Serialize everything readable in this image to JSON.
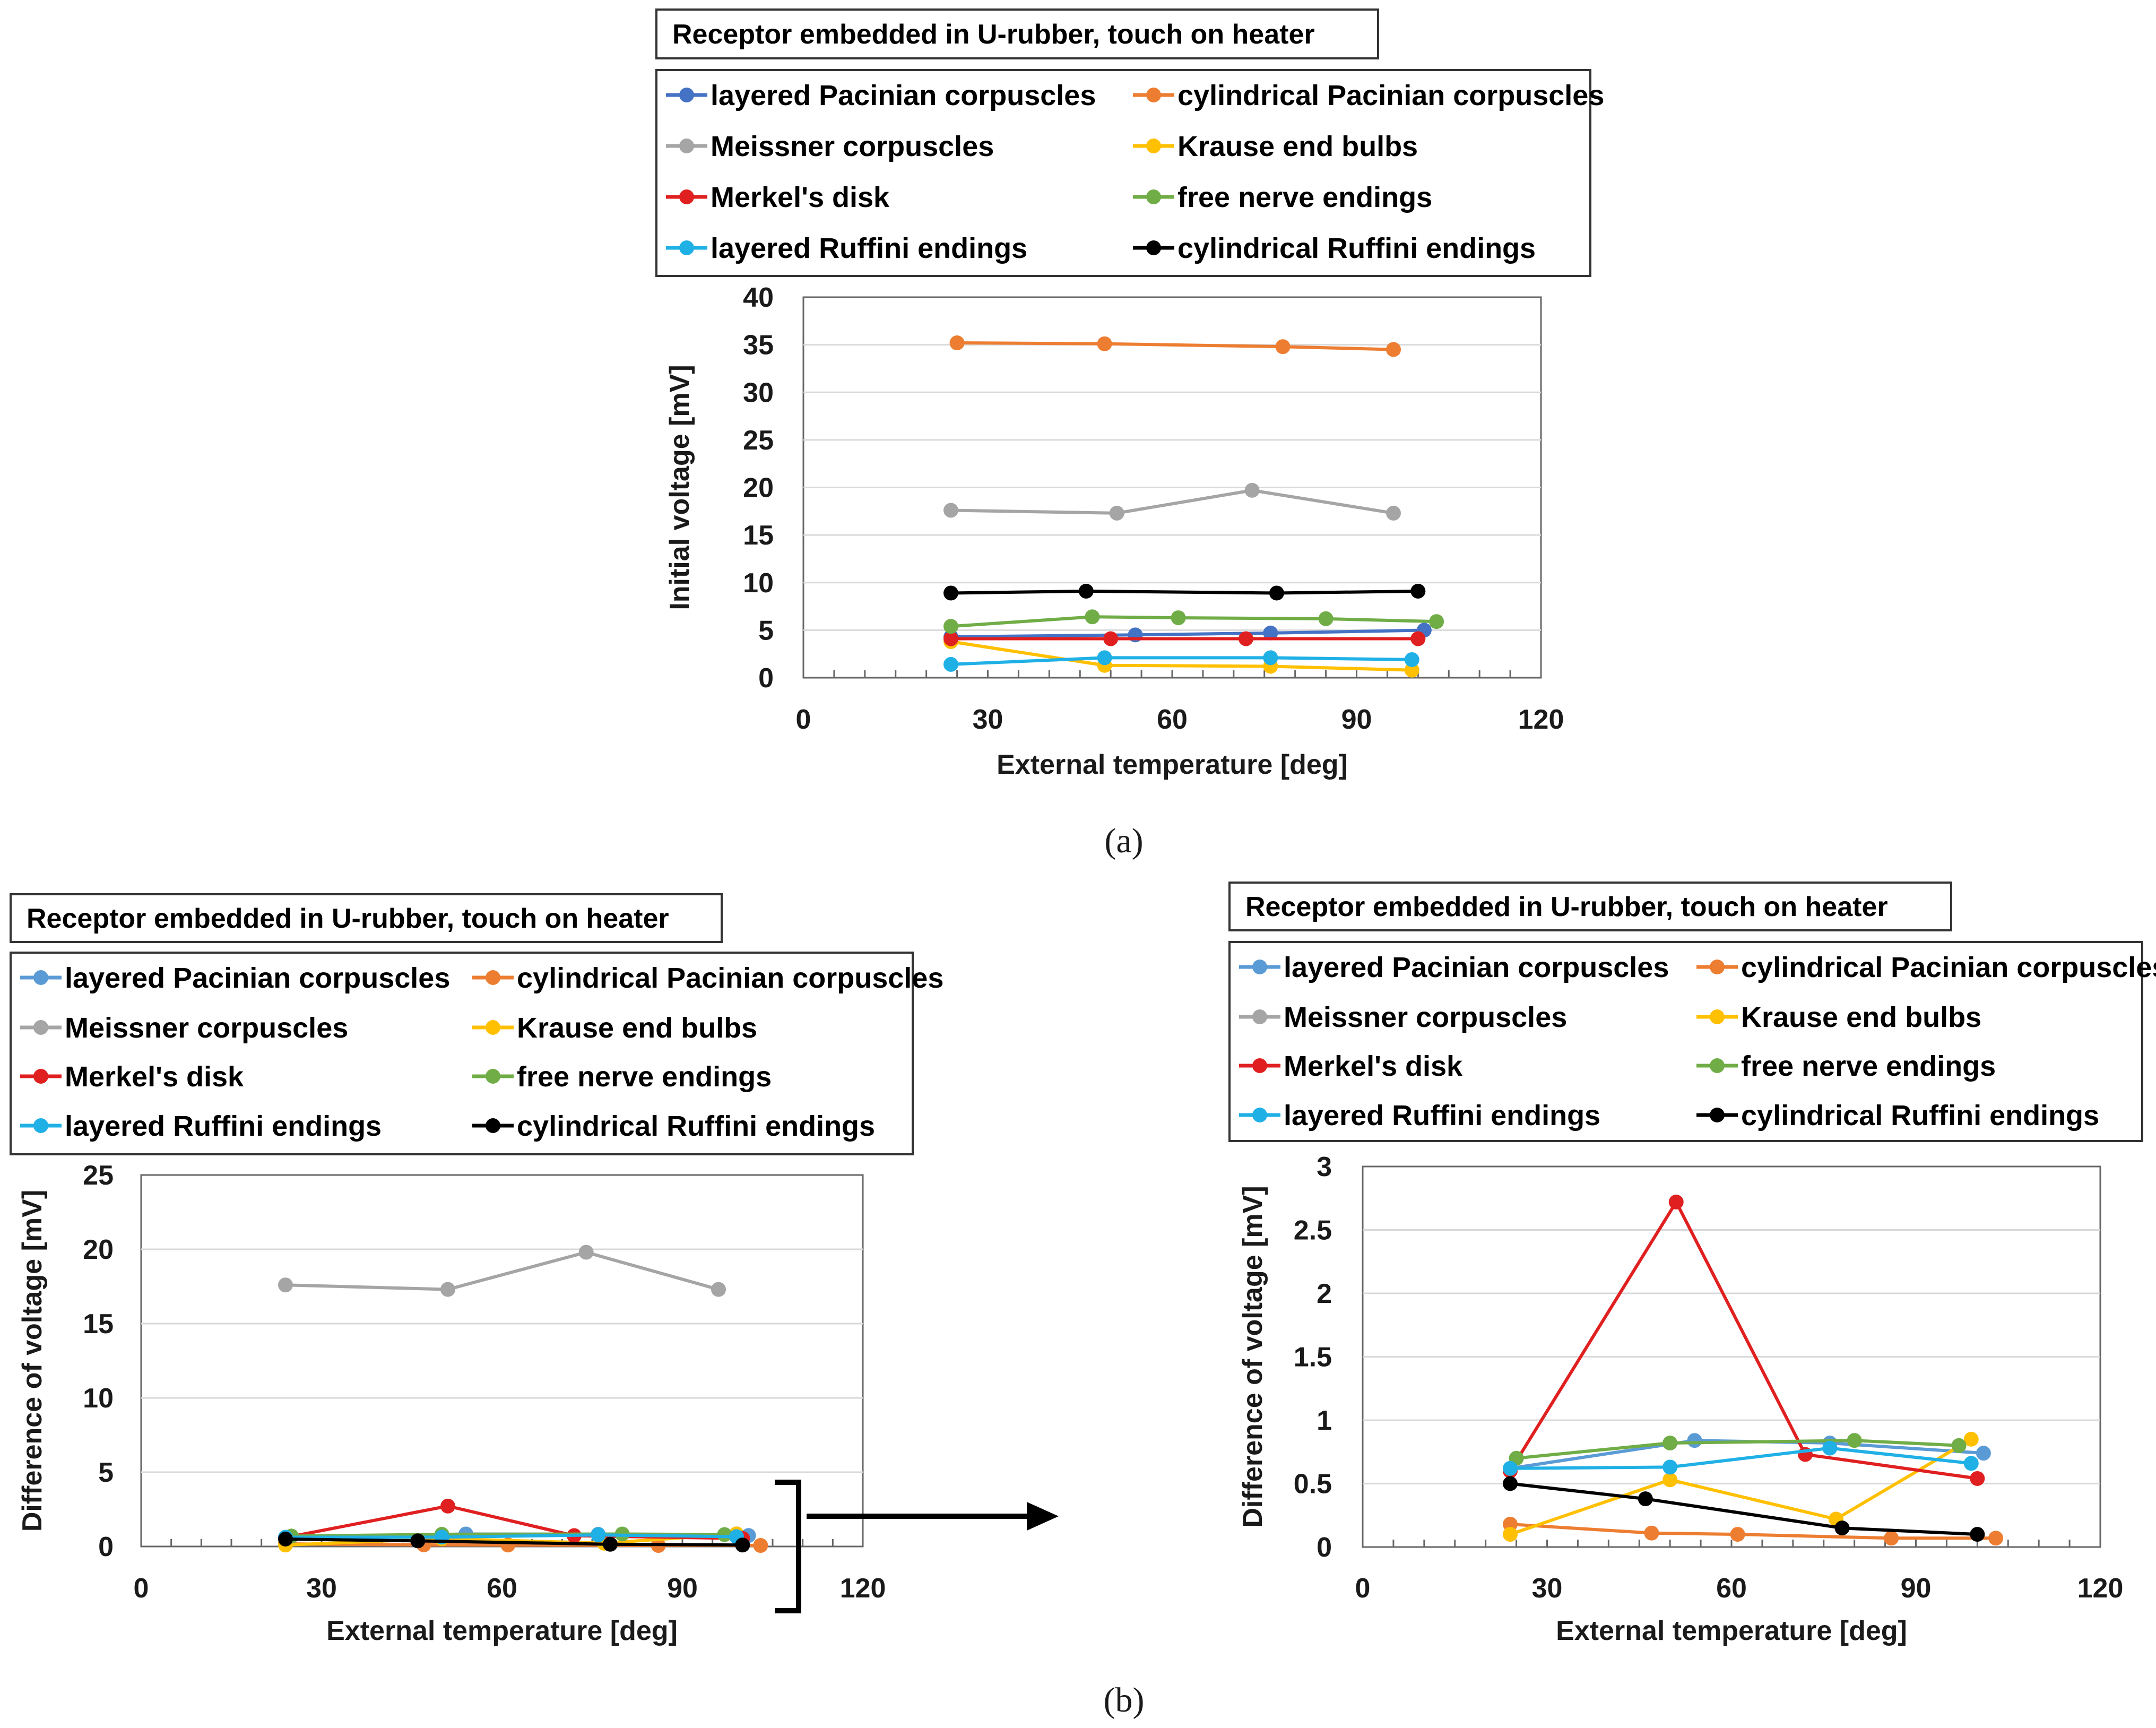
{
  "colors": {
    "layered_pacinian": "#4472C4",
    "layered_pacinian_b": "#5B9BD5",
    "cylindrical_pacinian": "#ED7D31",
    "meissner": "#A5A5A5",
    "krause": "#FFC000",
    "merkel": "#E02020",
    "free_nerve": "#70AD47",
    "layered_ruffini": "#1FB0E6",
    "cylindrical_ruffini": "#000000"
  },
  "panel_labels": {
    "a": "(a)",
    "b": "(b)"
  },
  "chart_data": [
    {
      "id": "a",
      "type": "line",
      "title": "Receptor embedded in U-rubber, touch on heater",
      "xlabel": "External temperature   [deg]",
      "ylabel": "Initial  voltage   [mV]",
      "xlim": [
        0,
        120
      ],
      "ylim": [
        0,
        40
      ],
      "xticks": [
        0,
        30,
        60,
        90,
        120
      ],
      "yticks": [
        0,
        5,
        10,
        15,
        20,
        25,
        30,
        35,
        40
      ],
      "grid": true,
      "legend": "top-two-columns",
      "series": [
        {
          "name": "layered Pacinian corpuscles",
          "color": "#4472C4",
          "x": [
            24,
            54,
            76,
            101
          ],
          "y": [
            4.3,
            4.5,
            4.7,
            5.0
          ]
        },
        {
          "name": "cylindrical Pacinian corpuscles",
          "color": "#ED7D31",
          "x": [
            25,
            49,
            78,
            96
          ],
          "y": [
            35.2,
            35.1,
            34.8,
            34.5
          ]
        },
        {
          "name": "Meissner corpuscles",
          "color": "#A5A5A5",
          "x": [
            24,
            51,
            73,
            96
          ],
          "y": [
            17.6,
            17.3,
            19.7,
            17.3
          ]
        },
        {
          "name": "Krause end bulbs",
          "color": "#FFC000",
          "x": [
            24,
            49,
            76,
            99
          ],
          "y": [
            3.8,
            1.3,
            1.2,
            0.8
          ]
        },
        {
          "name": "Merkel's disk",
          "color": "#E02020",
          "x": [
            24,
            50,
            72,
            100
          ],
          "y": [
            4.1,
            4.1,
            4.1,
            4.1
          ]
        },
        {
          "name": "free nerve endings",
          "color": "#70AD47",
          "x": [
            24,
            47,
            61,
            85,
            103
          ],
          "y": [
            5.4,
            6.4,
            6.3,
            6.2,
            5.9
          ]
        },
        {
          "name": "layered Ruffini endings",
          "color": "#1FB0E6",
          "x": [
            24,
            49,
            76,
            99
          ],
          "y": [
            1.4,
            2.1,
            2.1,
            1.9
          ]
        },
        {
          "name": "cylindrical Ruffini endings",
          "color": "#000000",
          "x": [
            24,
            46,
            77,
            100
          ],
          "y": [
            8.9,
            9.1,
            8.9,
            9.1
          ]
        }
      ]
    },
    {
      "id": "b-left",
      "type": "line",
      "title": "Receptor embedded in U-rubber, touch on heater",
      "xlabel": "External temperature   [deg]",
      "ylabel": "Difference of voltage   [mV]",
      "xlim": [
        0,
        120
      ],
      "ylim": [
        0,
        25
      ],
      "xticks": [
        0,
        30,
        60,
        90,
        120
      ],
      "yticks": [
        0,
        5,
        10,
        15,
        20,
        25
      ],
      "grid": true,
      "legend": "top-two-columns",
      "series": [
        {
          "name": "layered Pacinian corpuscles",
          "color": "#5B9BD5",
          "x": [
            24,
            54,
            76,
            101
          ],
          "y": [
            0.62,
            0.84,
            0.82,
            0.74
          ]
        },
        {
          "name": "cylindrical Pacinian corpuscles",
          "color": "#ED7D31",
          "x": [
            24,
            47,
            61,
            86,
            103
          ],
          "y": [
            0.18,
            0.11,
            0.1,
            0.07,
            0.07
          ]
        },
        {
          "name": "Meissner corpuscles",
          "color": "#A5A5A5",
          "x": [
            24,
            51,
            74,
            96
          ],
          "y": [
            17.6,
            17.3,
            19.8,
            17.3
          ]
        },
        {
          "name": "Krause end bulbs",
          "color": "#FFC000",
          "x": [
            24,
            50,
            77,
            99
          ],
          "y": [
            0.1,
            0.53,
            0.22,
            0.85
          ]
        },
        {
          "name": "Merkel's disk",
          "color": "#E02020",
          "x": [
            24,
            51,
            72,
            100
          ],
          "y": [
            0.6,
            2.72,
            0.73,
            0.54
          ]
        },
        {
          "name": "free nerve endings",
          "color": "#70AD47",
          "x": [
            25,
            50,
            80,
            97
          ],
          "y": [
            0.7,
            0.82,
            0.84,
            0.8
          ]
        },
        {
          "name": "layered Ruffini endings",
          "color": "#1FB0E6",
          "x": [
            24,
            50,
            76,
            99
          ],
          "y": [
            0.62,
            0.63,
            0.78,
            0.66
          ]
        },
        {
          "name": "cylindrical Ruffini endings",
          "color": "#000000",
          "x": [
            24,
            46,
            78,
            100
          ],
          "y": [
            0.5,
            0.38,
            0.15,
            0.1
          ]
        }
      ]
    },
    {
      "id": "b-right",
      "type": "line",
      "title": "Receptor embedded in U-rubber, touch on heater",
      "xlabel": "External temperature   [deg]",
      "ylabel": "Difference of voltage   [mV]",
      "xlim": [
        0,
        120
      ],
      "ylim": [
        0,
        3
      ],
      "xticks": [
        0,
        30,
        60,
        90,
        120
      ],
      "yticks": [
        0,
        0.5,
        1,
        1.5,
        2,
        2.5,
        3
      ],
      "grid": true,
      "legend": "top-two-columns",
      "series": [
        {
          "name": "layered Pacinian corpuscles",
          "color": "#5B9BD5",
          "x": [
            24,
            54,
            76,
            101
          ],
          "y": [
            0.62,
            0.84,
            0.82,
            0.74
          ]
        },
        {
          "name": "cylindrical Pacinian corpuscles",
          "color": "#ED7D31",
          "x": [
            24,
            47,
            61,
            86,
            103
          ],
          "y": [
            0.18,
            0.11,
            0.1,
            0.07,
            0.07
          ]
        },
        {
          "name": "Meissner corpuscles",
          "color": "#A5A5A5",
          "x": [],
          "y": []
        },
        {
          "name": "Krause end bulbs",
          "color": "#FFC000",
          "x": [
            24,
            50,
            77,
            99
          ],
          "y": [
            0.1,
            0.53,
            0.22,
            0.85
          ]
        },
        {
          "name": "Merkel's disk",
          "color": "#E02020",
          "x": [
            24,
            51,
            72,
            100
          ],
          "y": [
            0.6,
            2.72,
            0.73,
            0.54
          ]
        },
        {
          "name": "free nerve endings",
          "color": "#70AD47",
          "x": [
            25,
            50,
            80,
            97
          ],
          "y": [
            0.7,
            0.82,
            0.84,
            0.8
          ]
        },
        {
          "name": "layered Ruffini endings",
          "color": "#1FB0E6",
          "x": [
            24,
            50,
            76,
            99
          ],
          "y": [
            0.62,
            0.63,
            0.78,
            0.66
          ]
        },
        {
          "name": "cylindrical Ruffini endings",
          "color": "#000000",
          "x": [
            24,
            46,
            78,
            100
          ],
          "y": [
            0.5,
            0.38,
            0.15,
            0.1
          ]
        }
      ]
    }
  ]
}
